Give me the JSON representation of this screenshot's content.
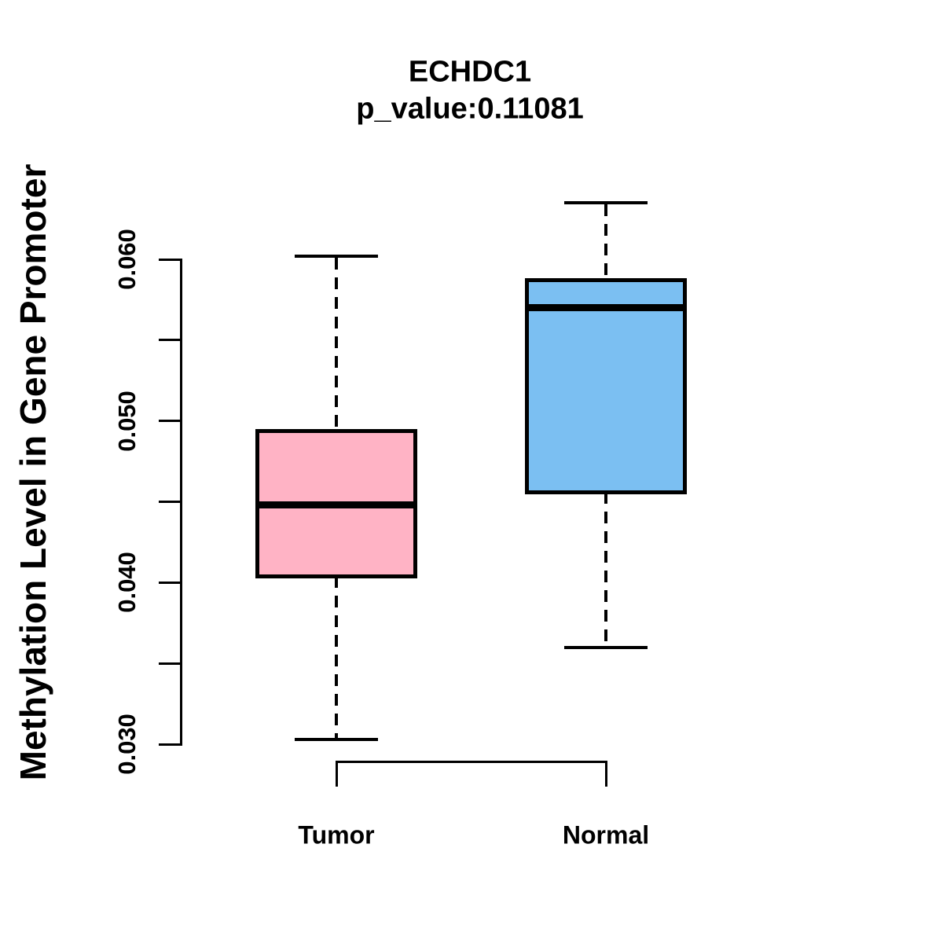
{
  "figure": {
    "background": "#FFFFFF",
    "text_color": "#000000"
  },
  "chart_data": {
    "type": "boxplot",
    "title": "ECHDC1",
    "subtitle": "p_value:0.11081",
    "ylabel": "Methylation Level in Gene Promoter",
    "xlabel": "",
    "categories": [
      "Tumor",
      "Normal"
    ],
    "series": [
      {
        "name": "Tumor",
        "color": "#FFB3C5",
        "whisker_low": 0.0303,
        "q1": 0.0404,
        "median": 0.0448,
        "q3": 0.0494,
        "whisker_high": 0.0602
      },
      {
        "name": "Normal",
        "color": "#7BBFF2",
        "whisker_low": 0.036,
        "q1": 0.0456,
        "median": 0.057,
        "q3": 0.0587,
        "whisker_high": 0.0635
      }
    ],
    "y_axis": {
      "min": 0.03,
      "max": 0.06,
      "tick_step": 0.005,
      "tick_values": [
        0.03,
        0.035,
        0.04,
        0.045,
        0.05,
        0.055,
        0.06
      ],
      "tick_labels": [
        "0.030",
        "0.040",
        "0.050",
        "0.060"
      ]
    },
    "grid": "off",
    "legend": "none",
    "box_border_color": "#000000",
    "median_color": "#000000",
    "whisker_style": "dashed"
  }
}
